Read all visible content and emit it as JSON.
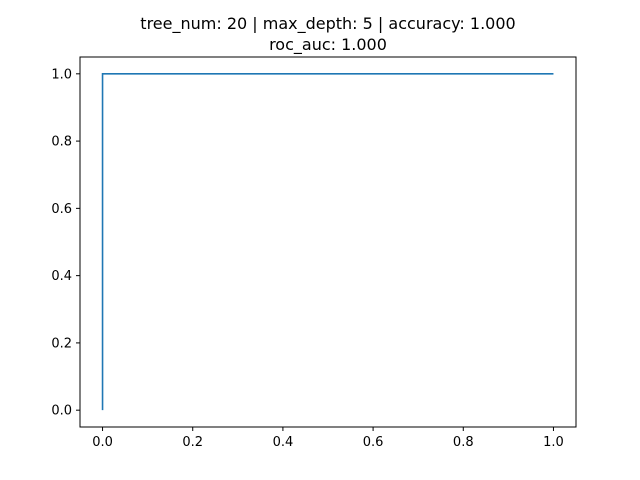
{
  "chart_data": {
    "type": "line",
    "title_line1": "tree_num: 20 | max_depth: 5 | accuracy: 1.000",
    "title_line2": "roc_auc: 1.000",
    "xlabel": "",
    "ylabel": "",
    "xlim": [
      -0.05,
      1.05
    ],
    "ylim": [
      -0.05,
      1.05
    ],
    "x_ticks": [
      0.0,
      0.2,
      0.4,
      0.6,
      0.8,
      1.0
    ],
    "x_tick_labels": [
      "0.0",
      "0.2",
      "0.4",
      "0.6",
      "0.8",
      "1.0"
    ],
    "y_ticks": [
      0.0,
      0.2,
      0.4,
      0.6,
      0.8,
      1.0
    ],
    "y_tick_labels": [
      "0.0",
      "0.2",
      "0.4",
      "0.6",
      "0.8",
      "1.0"
    ],
    "grid": false,
    "series": [
      {
        "color": "#1f77b4",
        "x": [
          0.0,
          0.0,
          1.0
        ],
        "y": [
          0.0,
          1.0,
          1.0
        ]
      }
    ]
  }
}
